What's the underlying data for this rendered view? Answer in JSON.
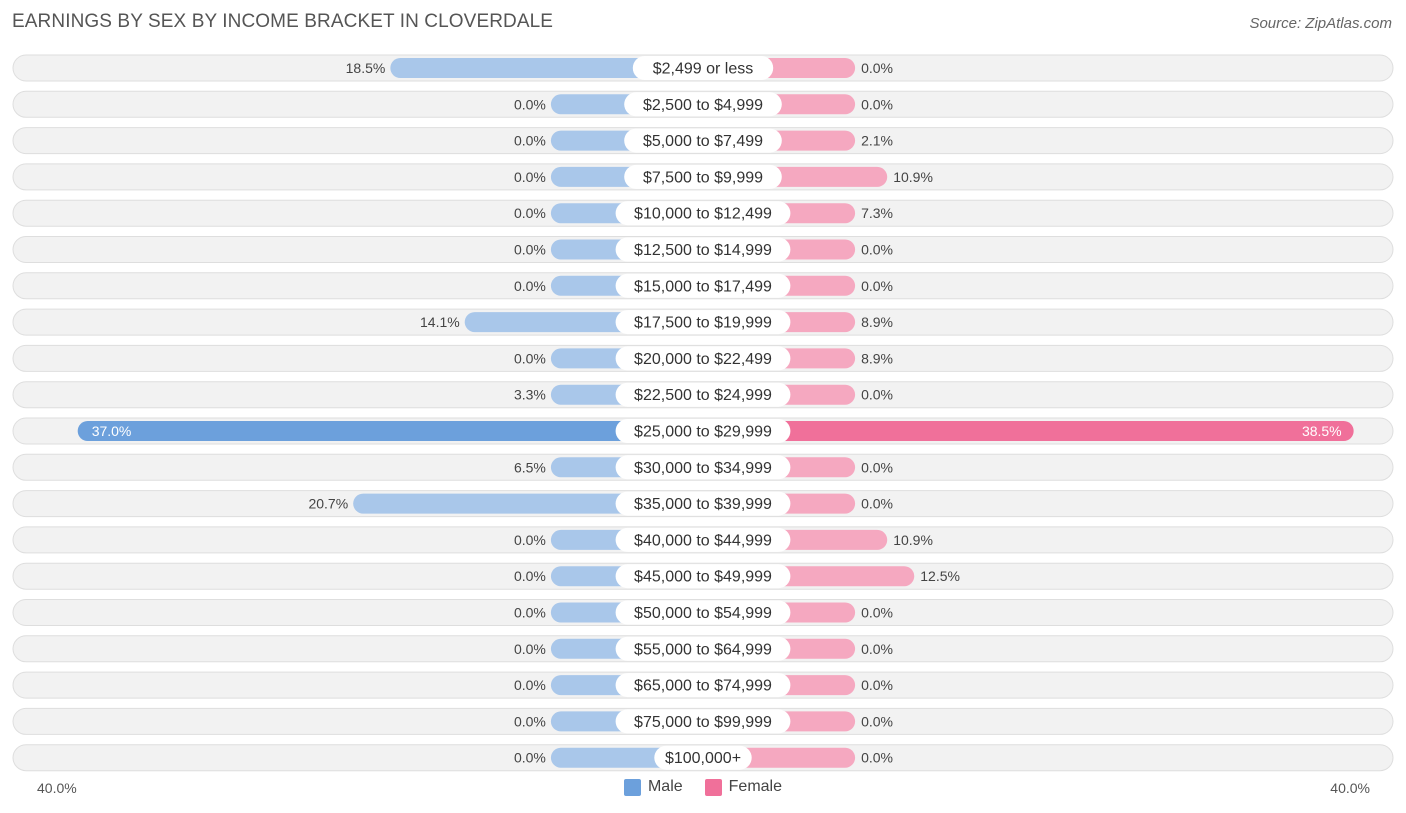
{
  "title": "EARNINGS BY SEX BY INCOME BRACKET IN CLOVERDALE",
  "source": "Source: ZipAtlas.com",
  "colors": {
    "male": "#6ca0dc",
    "male_light": "#a9c7ea",
    "female": "#f0709a",
    "female_light": "#f5a8c0",
    "row_bg": "#f2f2f2",
    "row_border": "#dedede"
  },
  "chart_data": {
    "type": "bar",
    "orientation": "horizontal-diverging",
    "categories": [
      "$2,499 or less",
      "$2,500 to $4,999",
      "$5,000 to $7,499",
      "$7,500 to $9,999",
      "$10,000 to $12,499",
      "$12,500 to $14,999",
      "$15,000 to $17,499",
      "$17,500 to $19,999",
      "$20,000 to $22,499",
      "$22,500 to $24,999",
      "$25,000 to $29,999",
      "$30,000 to $34,999",
      "$35,000 to $39,999",
      "$40,000 to $44,999",
      "$45,000 to $49,999",
      "$50,000 to $54,999",
      "$55,000 to $64,999",
      "$65,000 to $74,999",
      "$75,000 to $99,999",
      "$100,000+"
    ],
    "series": [
      {
        "name": "Male",
        "values": [
          18.5,
          0.0,
          0.0,
          0.0,
          0.0,
          0.0,
          0.0,
          14.1,
          0.0,
          3.3,
          37.0,
          6.5,
          20.7,
          0.0,
          0.0,
          0.0,
          0.0,
          0.0,
          0.0,
          0.0
        ],
        "labels": [
          "18.5%",
          "0.0%",
          "0.0%",
          "0.0%",
          "0.0%",
          "0.0%",
          "0.0%",
          "14.1%",
          "0.0%",
          "3.3%",
          "37.0%",
          "6.5%",
          "20.7%",
          "0.0%",
          "0.0%",
          "0.0%",
          "0.0%",
          "0.0%",
          "0.0%",
          "0.0%"
        ]
      },
      {
        "name": "Female",
        "values": [
          0.0,
          0.0,
          2.1,
          10.9,
          7.3,
          0.0,
          0.0,
          8.9,
          8.9,
          0.0,
          38.5,
          0.0,
          0.0,
          10.9,
          12.5,
          0.0,
          0.0,
          0.0,
          0.0,
          0.0
        ],
        "labels": [
          "0.0%",
          "0.0%",
          "2.1%",
          "10.9%",
          "7.3%",
          "0.0%",
          "0.0%",
          "8.9%",
          "8.9%",
          "0.0%",
          "38.5%",
          "0.0%",
          "0.0%",
          "10.9%",
          "12.5%",
          "0.0%",
          "0.0%",
          "0.0%",
          "0.0%",
          "0.0%"
        ]
      }
    ],
    "xlim": [
      -40,
      40
    ],
    "axis_labels": {
      "left": "40.0%",
      "right": "40.0%"
    },
    "legend": [
      "Male",
      "Female"
    ],
    "legend_position": "bottom-center"
  }
}
